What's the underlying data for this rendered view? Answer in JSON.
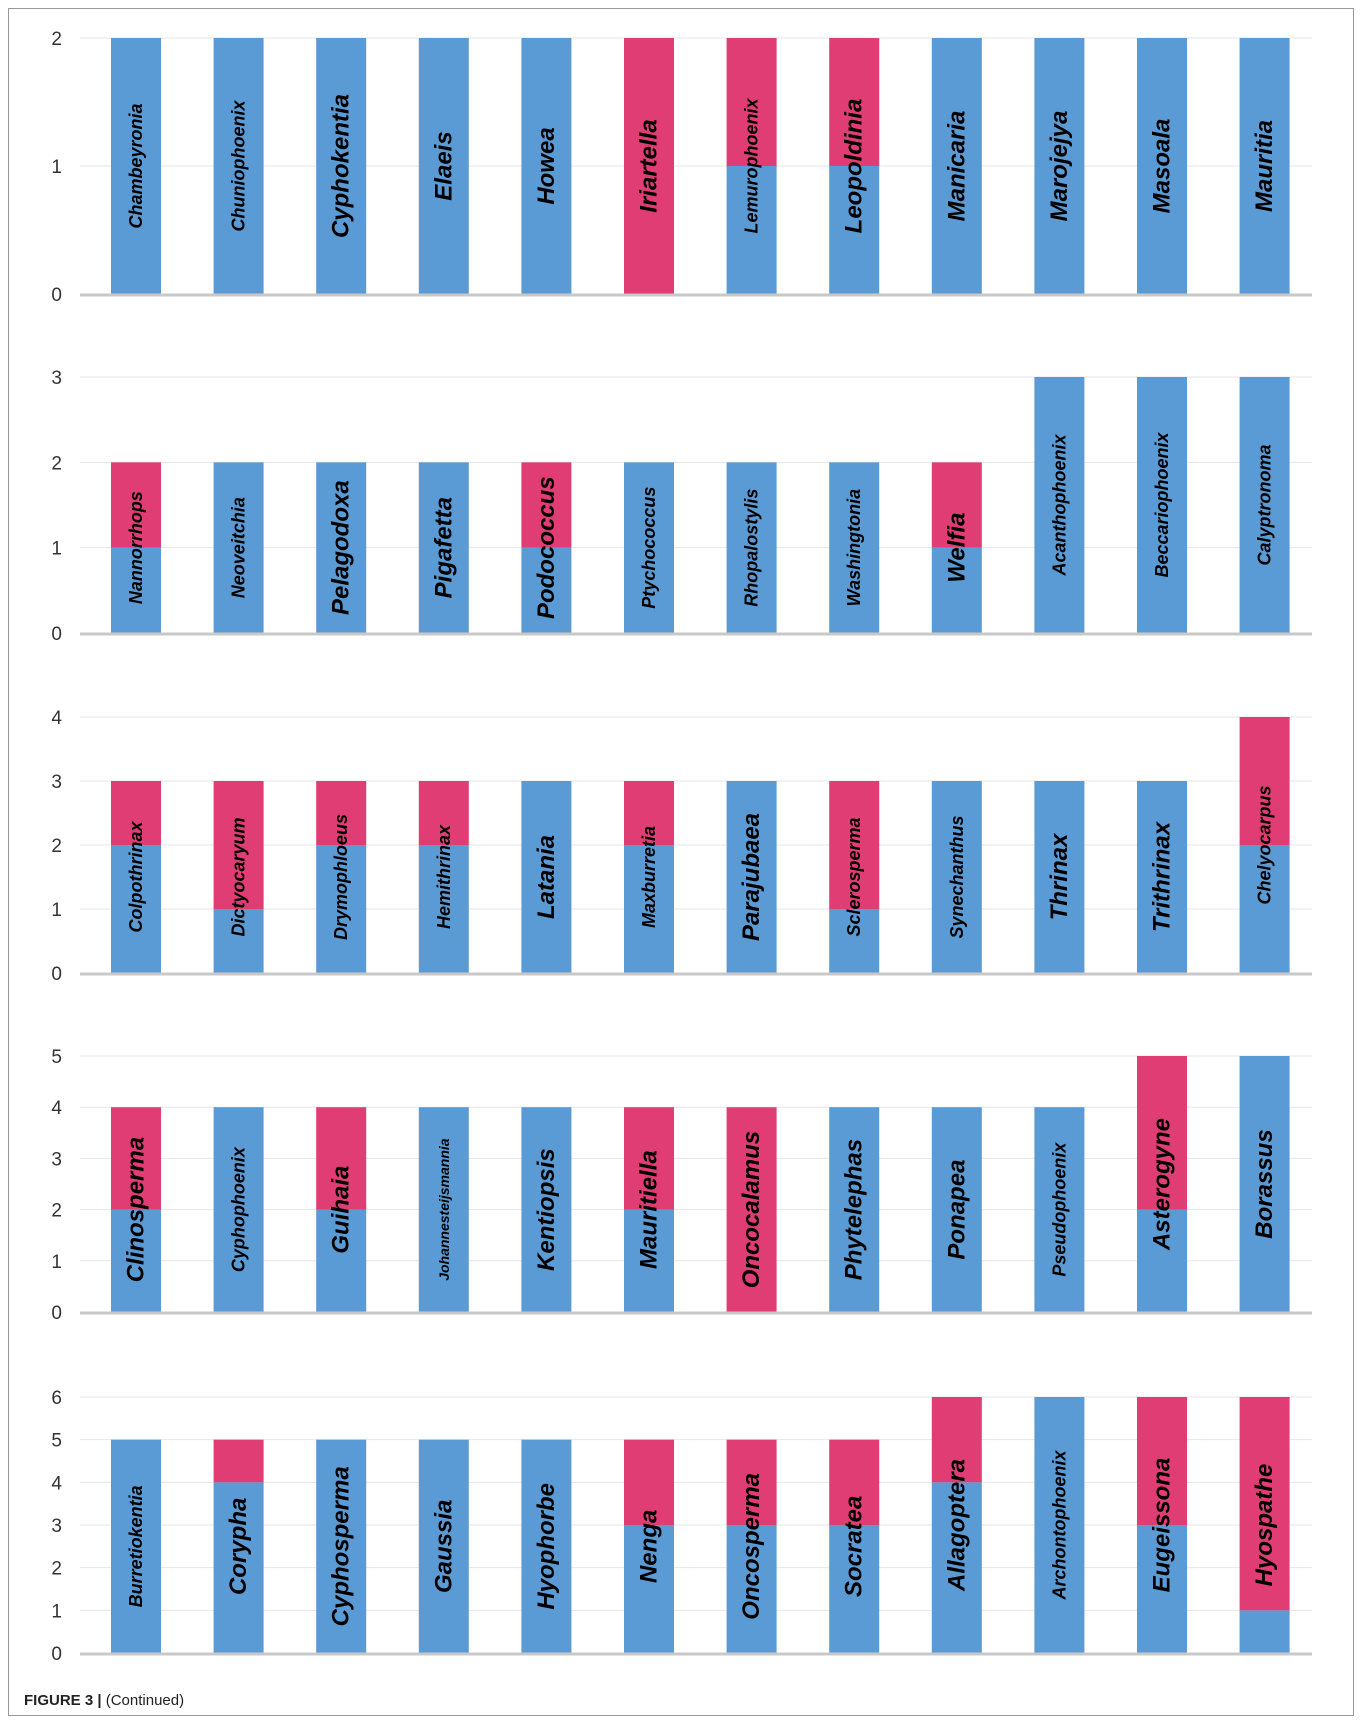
{
  "colors": {
    "series_blue": "#5b9bd5",
    "series_pink": "#e03d74"
  },
  "caption": {
    "figure_label": "FIGURE 3 |",
    "text": " (Continued)"
  },
  "chart_data": [
    {
      "type": "bar",
      "stacked": true,
      "grid": true,
      "ylim": [
        0,
        2
      ],
      "yticks": [
        0,
        1,
        2
      ],
      "categories": [
        "Chambeyronia",
        "Chuniophoenix",
        "Cyphokentia",
        "Elaeis",
        "Howea",
        "Iriartella",
        "Lemurophoenix",
        "Leopoldinia",
        "Manicaria",
        "Marojejya",
        "Masoala",
        "Mauritia"
      ],
      "series": [
        {
          "color": "blue",
          "values": [
            2,
            2,
            2,
            2,
            2,
            0,
            1,
            1,
            2,
            2,
            2,
            2
          ]
        },
        {
          "color": "pink",
          "values": [
            0,
            0,
            0,
            0,
            0,
            2,
            1,
            1,
            0,
            0,
            0,
            0
          ]
        }
      ]
    },
    {
      "type": "bar",
      "stacked": true,
      "grid": true,
      "ylim": [
        0,
        3
      ],
      "yticks": [
        0,
        1,
        2,
        3
      ],
      "categories": [
        "Nannorrhops",
        "Neoveitchia",
        "Pelagodoxa",
        "Pigafetta",
        "Podococcus",
        "Ptychococcus",
        "Rhopalostylis",
        "Washingtonia",
        "Welfia",
        "Acanthophoenix",
        "Beccariophoenix",
        "Calyptronoma"
      ],
      "series": [
        {
          "color": "blue",
          "values": [
            1,
            2,
            2,
            2,
            1,
            2,
            2,
            2,
            1,
            3,
            3,
            3
          ]
        },
        {
          "color": "pink",
          "values": [
            1,
            0,
            0,
            0,
            1,
            0,
            0,
            0,
            1,
            0,
            0,
            0
          ]
        }
      ]
    },
    {
      "type": "bar",
      "stacked": true,
      "grid": true,
      "ylim": [
        0,
        4
      ],
      "yticks": [
        0,
        1,
        2,
        3,
        4
      ],
      "categories": [
        "Colpothrinax",
        "Dictyocaryum",
        "Drymophloeus",
        "Hemithrinax",
        "Latania",
        "Maxburretia",
        "Parajubaea",
        "Sclerosperma",
        "Synechanthus",
        "Thrinax",
        "Trithrinax",
        "Chelyocarpus"
      ],
      "series": [
        {
          "color": "blue",
          "values": [
            2,
            1,
            2,
            2,
            3,
            2,
            3,
            1,
            3,
            3,
            3,
            2
          ]
        },
        {
          "color": "pink",
          "values": [
            1,
            2,
            1,
            1,
            0,
            1,
            0,
            2,
            0,
            0,
            0,
            2
          ]
        }
      ]
    },
    {
      "type": "bar",
      "stacked": true,
      "grid": true,
      "ylim": [
        0,
        5
      ],
      "yticks": [
        0,
        1,
        2,
        3,
        4,
        5
      ],
      "categories": [
        "Clinosperma",
        "Cyphophoenix",
        "Guihaia",
        "Johannesteijsmannia",
        "Kentiopsis",
        "Mauritiella",
        "Oncocalamus",
        "Phytelephas",
        "Ponapea",
        "Pseudophoenix",
        "Asterogyne",
        "Borassus"
      ],
      "series": [
        {
          "color": "blue",
          "values": [
            2,
            4,
            2,
            4,
            4,
            2,
            0,
            4,
            4,
            4,
            2,
            5
          ]
        },
        {
          "color": "pink",
          "values": [
            2,
            0,
            2,
            0,
            0,
            2,
            4,
            0,
            0,
            0,
            3,
            0
          ]
        }
      ]
    },
    {
      "type": "bar",
      "stacked": true,
      "grid": true,
      "ylim": [
        0,
        6
      ],
      "yticks": [
        0,
        1,
        2,
        3,
        4,
        5,
        6
      ],
      "categories": [
        "Burretiokentia",
        "Corypha",
        "Cyphosperma",
        "Gaussia",
        "Hyophorbe",
        "Nenga",
        "Oncosperma",
        "Socratea",
        "Allagoptera",
        "Archontophoenix",
        "Eugeissona",
        "Hyospathe"
      ],
      "series": [
        {
          "color": "blue",
          "values": [
            5,
            4,
            5,
            5,
            5,
            3,
            3,
            3,
            4,
            6,
            3,
            1
          ]
        },
        {
          "color": "pink",
          "values": [
            0,
            1,
            0,
            0,
            0,
            2,
            2,
            2,
            2,
            0,
            3,
            5
          ]
        }
      ]
    }
  ]
}
